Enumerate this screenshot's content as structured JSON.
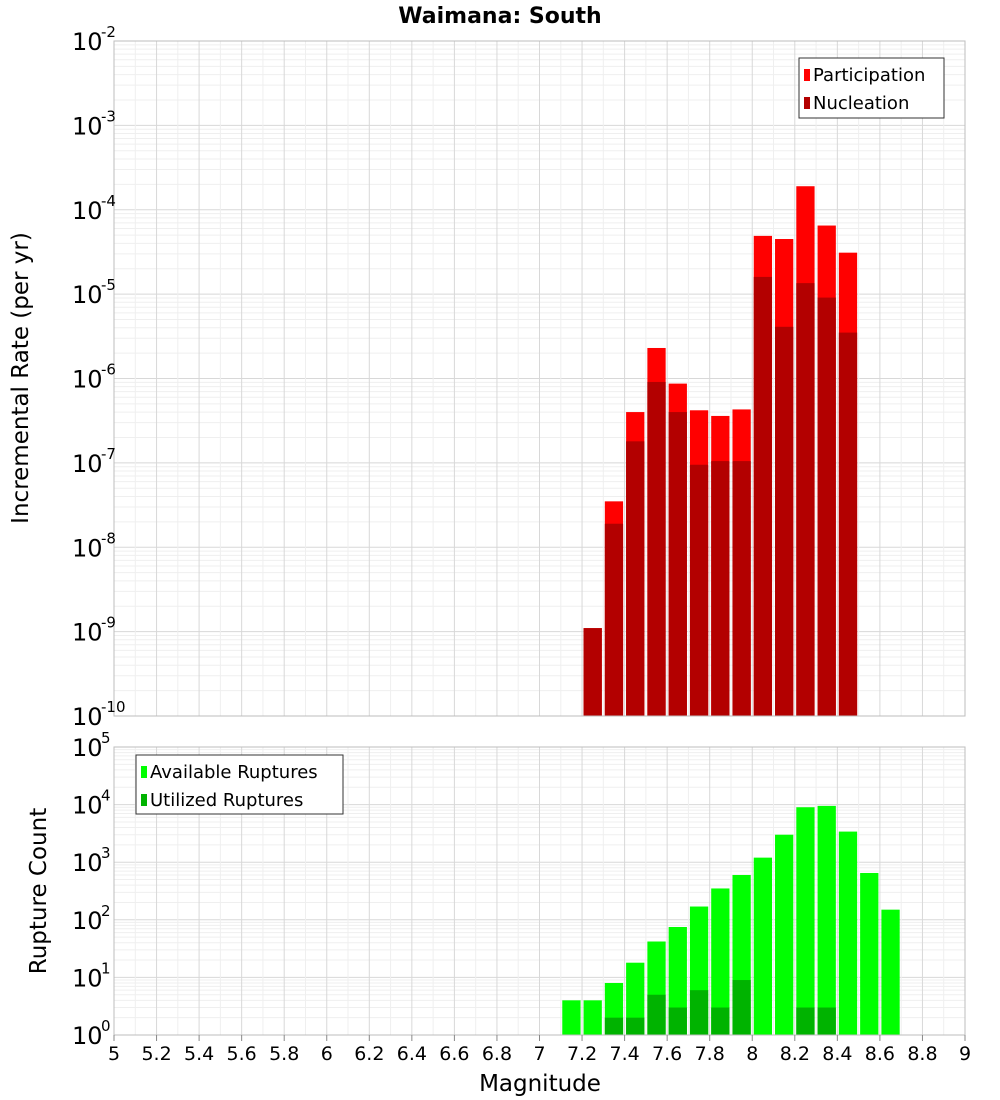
{
  "chart_data": [
    {
      "type": "bar",
      "title": "Waimana: South",
      "xlabel": "",
      "ylabel": "Incremental Rate (per yr)",
      "yscale": "log",
      "ylim": [
        1e-10,
        0.01
      ],
      "y_ticks": [
        {
          "base": "10",
          "exp": "-10"
        },
        {
          "base": "10",
          "exp": "-9"
        },
        {
          "base": "10",
          "exp": "-8"
        },
        {
          "base": "10",
          "exp": "-7"
        },
        {
          "base": "10",
          "exp": "-6"
        },
        {
          "base": "10",
          "exp": "-5"
        },
        {
          "base": "10",
          "exp": "-4"
        },
        {
          "base": "10",
          "exp": "-3"
        },
        {
          "base": "10",
          "exp": "-2"
        }
      ],
      "x": [
        7.25,
        7.35,
        7.45,
        7.55,
        7.65,
        7.75,
        7.85,
        7.95,
        8.05,
        8.15,
        8.25,
        8.35,
        8.45
      ],
      "series": [
        {
          "name": "Participation",
          "color": "#ff0000",
          "values": [
            1.1e-09,
            3.5e-08,
            4e-07,
            2.3e-06,
            8.7e-07,
            4.2e-07,
            3.6e-07,
            4.3e-07,
            4.9e-05,
            4.5e-05,
            0.00019,
            6.5e-05,
            3.1e-05
          ]
        },
        {
          "name": "Nucleation",
          "color": "#b30000",
          "values": [
            1.1e-09,
            1.9e-08,
            1.8e-07,
            9.1e-07,
            4e-07,
            9.5e-08,
            1.05e-07,
            1.05e-07,
            1.6e-05,
            4.1e-06,
            1.35e-05,
            9.1e-06,
            3.5e-06
          ]
        }
      ],
      "legend": "top-right",
      "grid": true
    },
    {
      "type": "bar",
      "xlabel": "Magnitude",
      "ylabel": "Rupture Count",
      "yscale": "log",
      "ylim": [
        1,
        100000.0
      ],
      "y_ticks": [
        {
          "base": "10",
          "exp": "0"
        },
        {
          "base": "10",
          "exp": "1"
        },
        {
          "base": "10",
          "exp": "2"
        },
        {
          "base": "10",
          "exp": "3"
        },
        {
          "base": "10",
          "exp": "4"
        },
        {
          "base": "10",
          "exp": "5"
        }
      ],
      "x_ticks": [
        "5",
        "5.2",
        "5.4",
        "5.6",
        "5.8",
        "6",
        "6.2",
        "6.4",
        "6.6",
        "6.8",
        "7",
        "7.2",
        "7.4",
        "7.6",
        "7.8",
        "8",
        "8.2",
        "8.4",
        "8.6",
        "8.8",
        "9"
      ],
      "xlim": [
        5,
        9
      ],
      "x": [
        7.15,
        7.25,
        7.35,
        7.45,
        7.55,
        7.65,
        7.75,
        7.85,
        7.95,
        8.05,
        8.15,
        8.25,
        8.35,
        8.45,
        8.55,
        8.65
      ],
      "series": [
        {
          "name": "Available Ruptures",
          "color": "#00ff00",
          "values": [
            4,
            4,
            8,
            18,
            42,
            75,
            170,
            350,
            600,
            1200,
            3000,
            9000,
            9500,
            3400,
            650,
            150
          ]
        },
        {
          "name": "Utilized Ruptures",
          "color": "#00b300",
          "values": [
            1,
            1,
            2,
            2,
            5,
            3,
            6,
            3,
            9,
            1,
            1,
            3,
            3,
            1,
            0,
            0
          ]
        }
      ],
      "legend": "top-left",
      "grid": true
    }
  ]
}
